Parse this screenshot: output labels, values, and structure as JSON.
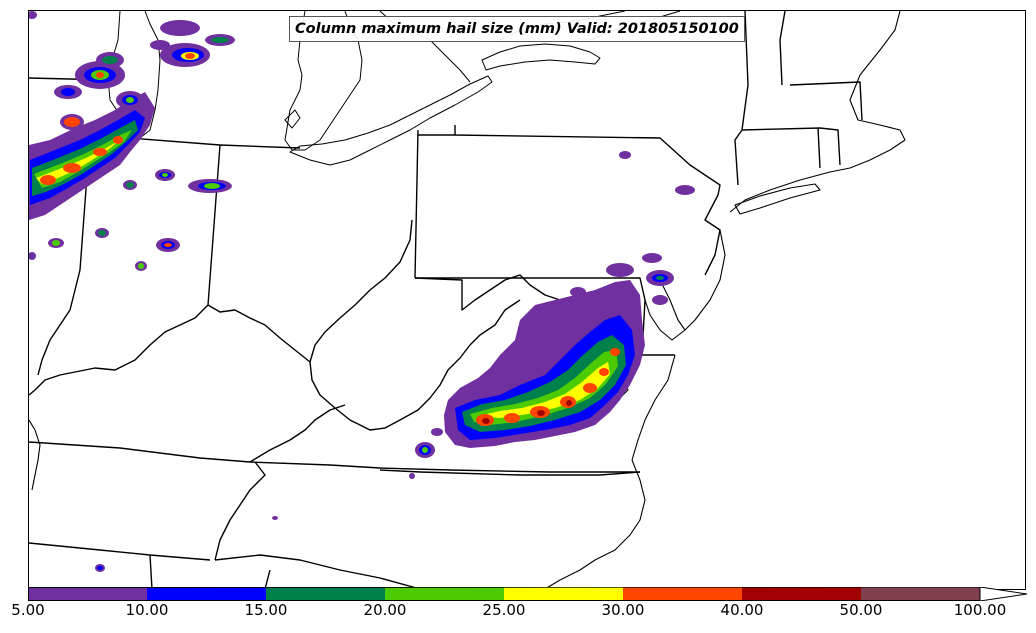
{
  "map": {
    "title": "Column maximum hail size (mm) Valid: 201805150100",
    "variable": "Column maximum hail size",
    "units": "mm",
    "valid_time": "201805150100"
  },
  "colorbar": {
    "levels": [
      "5.00",
      "10.00",
      "15.00",
      "20.00",
      "25.00",
      "30.00",
      "40.00",
      "50.00",
      "100.00"
    ],
    "colors": [
      "#7030a0",
      "#0000ff",
      "#00804a",
      "#4ccc00",
      "#ffff00",
      "#ff4500",
      "#a00000",
      "#804050",
      "#ffffff"
    ],
    "extend": "max"
  },
  "style": {
    "boundary_color": "#000000",
    "background": "#ffffff"
  }
}
